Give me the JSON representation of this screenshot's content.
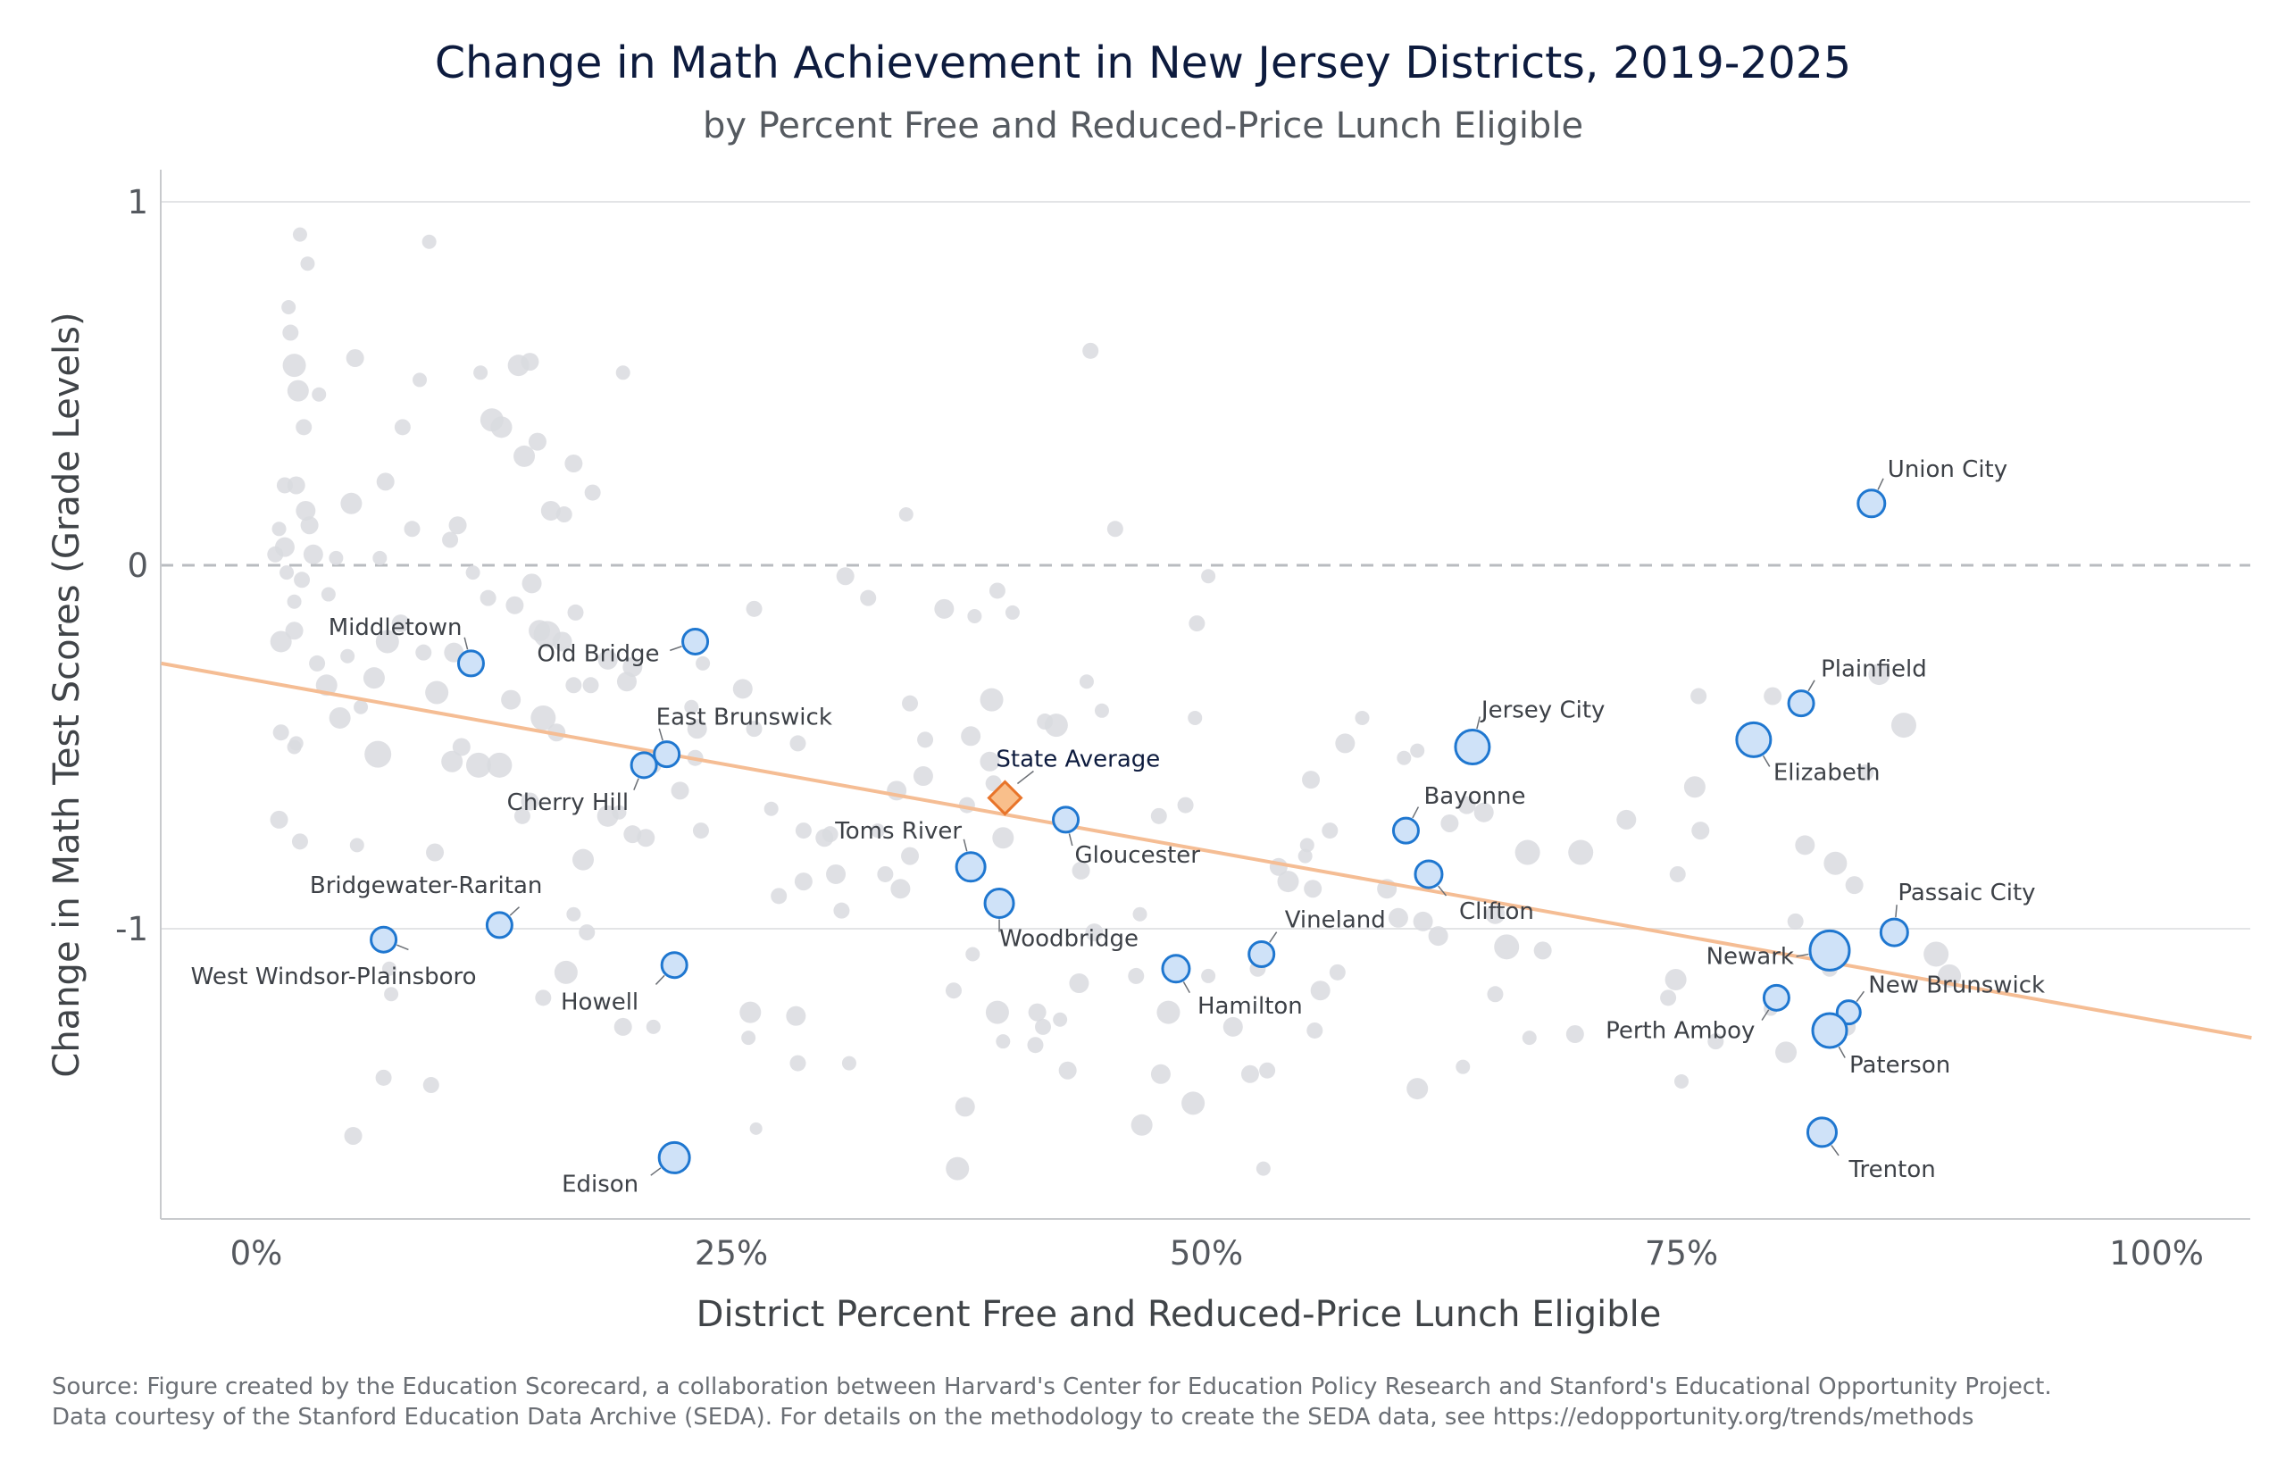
{
  "chart_data": {
    "type": "scatter",
    "title": "Change in Math Achievement in New Jersey Districts, 2019-2025",
    "subtitle": "by Percent Free and Reduced-Price Lunch Eligible",
    "xlabel": "District Percent Free and Reduced-Price Lunch Eligible",
    "ylabel": "Change in Math Test Scores (Grade Levels)",
    "xlim": [
      -5,
      105
    ],
    "ylim": [
      -1.8,
      1.1
    ],
    "x_ticks": [
      {
        "value": 0,
        "label": "0%"
      },
      {
        "value": 25,
        "label": "25%"
      },
      {
        "value": 50,
        "label": "50%"
      },
      {
        "value": 75,
        "label": "75%"
      },
      {
        "value": 100,
        "label": "100%"
      }
    ],
    "y_ticks": [
      {
        "value": 1,
        "label": "1"
      },
      {
        "value": 0,
        "label": "0"
      },
      {
        "value": -1,
        "label": "-1"
      }
    ],
    "reference_line_y": 0,
    "trend_line": {
      "x": [
        -5,
        105
      ],
      "y": [
        -0.27,
        -1.3
      ]
    },
    "colors": {
      "background_points": "#d9dbdf",
      "highlight_fill": "#cfe2f8",
      "highlight_stroke": "#1f77d0",
      "state_fill": "#f9bf8b",
      "state_stroke": "#e8742a",
      "trend": "#f5bd94",
      "reference": "#b9bcc0",
      "grid": "#e3e4e6"
    },
    "background_points": [
      [
        1,
        0.03,
        9
      ],
      [
        1.5,
        0.05,
        11
      ],
      [
        2,
        0.55,
        13
      ],
      [
        2.2,
        0.48,
        12
      ],
      [
        2.5,
        0.38,
        9
      ],
      [
        1.8,
        0.64,
        9
      ],
      [
        1.7,
        0.71,
        8
      ],
      [
        2.3,
        0.91,
        8
      ],
      [
        2.7,
        0.83,
        8
      ],
      [
        3.3,
        0.47,
        8
      ],
      [
        2.1,
        0.22,
        10
      ],
      [
        1.5,
        0.22,
        9
      ],
      [
        2.6,
        0.15,
        11
      ],
      [
        1.2,
        0.1,
        8
      ],
      [
        2.8,
        0.11,
        10
      ],
      [
        3,
        0.03,
        11
      ],
      [
        1.6,
        -0.02,
        8
      ],
      [
        2.4,
        -0.04,
        9
      ],
      [
        2,
        -0.1,
        8
      ],
      [
        3.8,
        -0.08,
        8
      ],
      [
        5,
        0.17,
        12
      ],
      [
        5.2,
        0.57,
        10
      ],
      [
        4.2,
        0.02,
        8
      ],
      [
        6.5,
        0.02,
        8
      ],
      [
        6.8,
        0.23,
        10
      ],
      [
        8.2,
        0.1,
        9
      ],
      [
        8.6,
        0.51,
        8
      ],
      [
        9.1,
        0.89,
        8
      ],
      [
        7.7,
        0.38,
        9
      ],
      [
        1.3,
        -0.21,
        12
      ],
      [
        2,
        -0.18,
        10
      ],
      [
        3.2,
        -0.27,
        9
      ],
      [
        3.7,
        -0.33,
        12
      ],
      [
        4.8,
        -0.25,
        8
      ],
      [
        6.2,
        -0.31,
        12
      ],
      [
        6.9,
        -0.21,
        13
      ],
      [
        7.6,
        -0.16,
        10
      ],
      [
        8.8,
        -0.24,
        9
      ],
      [
        9.5,
        -0.35,
        13
      ],
      [
        10.4,
        -0.24,
        11
      ],
      [
        11.1,
        -0.26,
        8
      ],
      [
        4.4,
        -0.42,
        12
      ],
      [
        5.5,
        -0.39,
        8
      ],
      [
        6.4,
        -0.52,
        15
      ],
      [
        1.3,
        -0.46,
        9
      ],
      [
        2.1,
        -0.49,
        8
      ],
      [
        1.2,
        -0.7,
        10
      ],
      [
        2.3,
        -0.76,
        9
      ],
      [
        5.3,
        -0.77,
        8
      ],
      [
        9.4,
        -0.79,
        10
      ],
      [
        2,
        -0.5,
        8
      ],
      [
        10.2,
        0.07,
        9
      ],
      [
        10.6,
        0.11,
        10
      ],
      [
        11.8,
        0.53,
        8
      ],
      [
        12.4,
        0.4,
        13
      ],
      [
        12.9,
        0.38,
        12
      ],
      [
        13.8,
        0.55,
        12
      ],
      [
        14.4,
        0.56,
        10
      ],
      [
        14.1,
        0.3,
        12
      ],
      [
        14.8,
        0.34,
        10
      ],
      [
        16.2,
        0.14,
        9
      ],
      [
        15.5,
        0.15,
        11
      ],
      [
        16.7,
        0.28,
        10
      ],
      [
        17.7,
        0.2,
        9
      ],
      [
        19.3,
        0.53,
        8
      ],
      [
        11.4,
        -0.02,
        8
      ],
      [
        12.2,
        -0.09,
        9
      ],
      [
        13.6,
        -0.11,
        10
      ],
      [
        14.5,
        -0.05,
        11
      ],
      [
        15.3,
        -0.19,
        15
      ],
      [
        14.9,
        -0.18,
        12
      ],
      [
        16.1,
        -0.21,
        11
      ],
      [
        16.8,
        -0.13,
        9
      ],
      [
        17.6,
        -0.33,
        9
      ],
      [
        18.5,
        -0.26,
        11
      ],
      [
        19.5,
        -0.32,
        11
      ],
      [
        19.8,
        -0.28,
        11
      ],
      [
        10.3,
        -0.54,
        12
      ],
      [
        11.7,
        -0.55,
        14
      ],
      [
        12.8,
        -0.55,
        14
      ],
      [
        13.4,
        -0.37,
        11
      ],
      [
        15.1,
        -0.42,
        14
      ],
      [
        15.8,
        -0.46,
        10
      ],
      [
        16.7,
        -0.33,
        9
      ],
      [
        10.8,
        -0.5,
        10
      ],
      [
        14,
        -0.69,
        9
      ],
      [
        14.4,
        -0.65,
        10
      ],
      [
        17.2,
        -0.81,
        12
      ],
      [
        16.7,
        -0.96,
        8
      ],
      [
        17.4,
        -1.01,
        9
      ],
      [
        16.3,
        -1.12,
        13
      ],
      [
        15.1,
        -1.19,
        9
      ],
      [
        19.3,
        -1.27,
        10
      ],
      [
        20.9,
        -1.27,
        8
      ],
      [
        18.5,
        -0.69,
        12
      ],
      [
        19.8,
        -0.74,
        10
      ],
      [
        20.5,
        -0.75,
        10
      ],
      [
        19.1,
        -0.68,
        8
      ],
      [
        20.9,
        -0.55,
        9
      ],
      [
        22.3,
        -0.62,
        10
      ],
      [
        23.4,
        -0.73,
        9
      ],
      [
        23.1,
        -0.53,
        9
      ],
      [
        22.9,
        -0.39,
        8
      ],
      [
        23.5,
        -0.27,
        8
      ],
      [
        23.2,
        -0.45,
        11
      ],
      [
        7,
        -1.11,
        8
      ],
      [
        7.1,
        -1.18,
        8
      ],
      [
        6.7,
        -1.41,
        9
      ],
      [
        9.2,
        -1.43,
        9
      ],
      [
        5.1,
        -1.57,
        10
      ],
      [
        26.2,
        -0.12,
        9
      ],
      [
        25.6,
        -0.34,
        11
      ],
      [
        26.2,
        -0.45,
        9
      ],
      [
        27.1,
        -0.67,
        8
      ],
      [
        28.8,
        -0.73,
        9
      ],
      [
        27.5,
        -0.91,
        9
      ],
      [
        28.8,
        -0.87,
        10
      ],
      [
        29.9,
        -0.75,
        10
      ],
      [
        30.5,
        -0.85,
        11
      ],
      [
        30.8,
        -0.95,
        9
      ],
      [
        30.2,
        -0.74,
        9
      ],
      [
        28.5,
        -0.49,
        9
      ],
      [
        32.2,
        -0.09,
        9
      ],
      [
        31,
        -0.03,
        10
      ],
      [
        34.4,
        -0.38,
        9
      ],
      [
        35.2,
        -0.48,
        9
      ],
      [
        35.1,
        -0.58,
        11
      ],
      [
        33.7,
        -0.62,
        11
      ],
      [
        32.7,
        -0.73,
        8
      ],
      [
        33.1,
        -0.85,
        9
      ],
      [
        34.4,
        -0.8,
        10
      ],
      [
        33.9,
        -0.89,
        11
      ],
      [
        34.2,
        0.14,
        8
      ],
      [
        36.2,
        -0.12,
        11
      ],
      [
        37.8,
        -0.14,
        8
      ],
      [
        39,
        -0.07,
        9
      ],
      [
        39.8,
        -0.13,
        8
      ],
      [
        38.7,
        -0.37,
        13
      ],
      [
        37.6,
        -0.47,
        11
      ],
      [
        38.6,
        -0.54,
        11
      ],
      [
        38.8,
        -0.6,
        9
      ],
      [
        37.4,
        -0.66,
        9
      ],
      [
        39.3,
        -0.75,
        12
      ],
      [
        42.1,
        -0.44,
        13
      ],
      [
        41.5,
        -0.43,
        9
      ],
      [
        43.7,
        -0.32,
        8
      ],
      [
        44.5,
        -0.4,
        8
      ],
      [
        43.9,
        0.59,
        9
      ],
      [
        45.2,
        0.1,
        9
      ],
      [
        47.5,
        -0.69,
        9
      ],
      [
        48.9,
        -0.66,
        9
      ],
      [
        49.5,
        -0.16,
        9
      ],
      [
        49.4,
        -0.42,
        8
      ],
      [
        50.1,
        -0.03,
        8
      ],
      [
        43.4,
        -0.84,
        10
      ],
      [
        37.7,
        -1.07,
        8
      ],
      [
        36.7,
        -1.17,
        9
      ],
      [
        39,
        -1.23,
        13
      ],
      [
        41.1,
        -1.23,
        10
      ],
      [
        41.4,
        -1.27,
        9
      ],
      [
        42.3,
        -1.25,
        8
      ],
      [
        41,
        -1.32,
        9
      ],
      [
        43.3,
        -1.15,
        11
      ],
      [
        44.1,
        -1.01,
        10
      ],
      [
        42.7,
        -1.39,
        10
      ],
      [
        37.3,
        -1.49,
        11
      ],
      [
        36.9,
        -1.66,
        13
      ],
      [
        26,
        -1.23,
        12
      ],
      [
        25.9,
        -1.3,
        8
      ],
      [
        28.4,
        -1.24,
        11
      ],
      [
        28.5,
        -1.37,
        9
      ],
      [
        31.2,
        -1.37,
        8
      ],
      [
        26.3,
        -1.55,
        7
      ],
      [
        46.5,
        -0.96,
        8
      ],
      [
        46.3,
        -1.13,
        9
      ],
      [
        48,
        -1.23,
        13
      ],
      [
        47.6,
        -1.4,
        11
      ],
      [
        49.3,
        -1.48,
        13
      ],
      [
        46.6,
        -1.54,
        12
      ],
      [
        50.1,
        -1.13,
        8
      ],
      [
        51.4,
        -1.27,
        11
      ],
      [
        52.3,
        -1.4,
        10
      ],
      [
        53.2,
        -1.39,
        9
      ],
      [
        53,
        -1.66,
        8
      ],
      [
        52.7,
        -1.11,
        9
      ],
      [
        53.8,
        -0.83,
        10
      ],
      [
        54.3,
        -0.87,
        12
      ],
      [
        55.6,
        -0.89,
        10
      ],
      [
        55.3,
        -0.77,
        8
      ],
      [
        55.2,
        -0.8,
        8
      ],
      [
        56.5,
        -0.73,
        9
      ],
      [
        55.5,
        -0.59,
        10
      ],
      [
        57.3,
        -0.49,
        11
      ],
      [
        58.2,
        -0.42,
        8
      ],
      [
        56,
        -1.17,
        11
      ],
      [
        56.9,
        -1.12,
        9
      ],
      [
        55.7,
        -1.28,
        9
      ],
      [
        59.5,
        -0.89,
        11
      ],
      [
        60.1,
        -0.97,
        11
      ],
      [
        60.4,
        -0.53,
        8
      ],
      [
        61.1,
        -0.51,
        8
      ],
      [
        61.4,
        -0.98,
        11
      ],
      [
        62.8,
        -0.71,
        10
      ],
      [
        62.2,
        -1.02,
        11
      ],
      [
        63.7,
        -0.66,
        10
      ],
      [
        64.6,
        -0.68,
        11
      ],
      [
        65.2,
        -0.96,
        11
      ],
      [
        65.2,
        -1.18,
        9
      ],
      [
        65.8,
        -1.05,
        14
      ],
      [
        61.1,
        -1.44,
        12
      ],
      [
        63.5,
        -1.38,
        8
      ],
      [
        66.9,
        -0.79,
        14
      ],
      [
        67.7,
        -1.06,
        10
      ],
      [
        67,
        -1.3,
        8
      ],
      [
        69.4,
        -1.29,
        10
      ],
      [
        69.7,
        -0.79,
        14
      ],
      [
        72.1,
        -0.7,
        11
      ],
      [
        74.8,
        -0.85,
        9
      ],
      [
        74.3,
        -1.19,
        9
      ],
      [
        74.7,
        -1.14,
        12
      ],
      [
        75,
        -1.42,
        8
      ],
      [
        75.7,
        -0.61,
        12
      ],
      [
        76,
        -0.73,
        10
      ],
      [
        75.9,
        -0.36,
        9
      ],
      [
        79.8,
        -0.36,
        10
      ],
      [
        76.8,
        -1.31,
        9
      ],
      [
        79.7,
        -1.22,
        8
      ],
      [
        80.5,
        -1.34,
        12
      ],
      [
        81,
        -0.98,
        9
      ],
      [
        81.5,
        -0.77,
        11
      ],
      [
        82.2,
        -1.05,
        9
      ],
      [
        82.8,
        -1.11,
        9
      ],
      [
        83.1,
        -0.82,
        13
      ],
      [
        84.1,
        -0.88,
        10
      ],
      [
        84.7,
        -0.57,
        9
      ],
      [
        85.4,
        -0.3,
        12
      ],
      [
        86.7,
        -0.44,
        14
      ],
      [
        88.4,
        -1.07,
        14
      ],
      [
        89.1,
        -1.13,
        13
      ],
      [
        83.7,
        -1.27,
        10
      ],
      [
        39.3,
        -1.31,
        8
      ]
    ],
    "highlighted_districts": [
      {
        "name": "Union City",
        "x": 85,
        "y": 0.17,
        "size": 15
      },
      {
        "name": "Plainfield",
        "x": 81.3,
        "y": -0.38,
        "size": 14
      },
      {
        "name": "Elizabeth",
        "x": 78.8,
        "y": -0.48,
        "size": 19
      },
      {
        "name": "Passaic City",
        "x": 86.2,
        "y": -1.01,
        "size": 15
      },
      {
        "name": "Newark",
        "x": 82.8,
        "y": -1.06,
        "size": 22
      },
      {
        "name": "New Brunswick",
        "x": 83.8,
        "y": -1.23,
        "size": 13
      },
      {
        "name": "Perth Amboy",
        "x": 80,
        "y": -1.19,
        "size": 14
      },
      {
        "name": "Paterson",
        "x": 82.8,
        "y": -1.28,
        "size": 19
      },
      {
        "name": "Trenton",
        "x": 82.4,
        "y": -1.56,
        "size": 16
      },
      {
        "name": "Jersey City",
        "x": 64,
        "y": -0.5,
        "size": 19
      },
      {
        "name": "Bayonne",
        "x": 60.5,
        "y": -0.73,
        "size": 14
      },
      {
        "name": "Clifton",
        "x": 61.7,
        "y": -0.85,
        "size": 15
      },
      {
        "name": "Vineland",
        "x": 52.9,
        "y": -1.07,
        "size": 14
      },
      {
        "name": "Hamilton",
        "x": 48.4,
        "y": -1.11,
        "size": 15
      },
      {
        "name": "Gloucester",
        "x": 42.6,
        "y": -0.7,
        "size": 14
      },
      {
        "name": "Woodbridge",
        "x": 39.1,
        "y": -0.93,
        "size": 16
      },
      {
        "name": "Toms River",
        "x": 37.6,
        "y": -0.83,
        "size": 16
      },
      {
        "name": "Old Bridge",
        "x": 23.1,
        "y": -0.21,
        "size": 14
      },
      {
        "name": "East Brunswick",
        "x": 21.6,
        "y": -0.52,
        "size": 14
      },
      {
        "name": "Cherry Hill",
        "x": 20.4,
        "y": -0.55,
        "size": 14
      },
      {
        "name": "Middletown",
        "x": 11.3,
        "y": -0.27,
        "size": 14
      },
      {
        "name": "Bridgewater-Raritan",
        "x": 12.8,
        "y": -0.99,
        "size": 14
      },
      {
        "name": "West Windsor-Plainsboro",
        "x": 6.7,
        "y": -1.03,
        "size": 14
      },
      {
        "name": "Howell",
        "x": 22,
        "y": -1.1,
        "size": 14
      },
      {
        "name": "Edison",
        "x": 22,
        "y": -1.63,
        "size": 17
      }
    ],
    "state_average": {
      "label": "State Average",
      "x": 39.4,
      "y": -0.64
    }
  },
  "source": {
    "line1": "Source: Figure created by the Education Scorecard, a collaboration between Harvard's Center for Education Policy Research and Stanford's Educational Opportunity Project.",
    "line2": "Data courtesy of the Stanford Education Data Archive (SEDA). For details on the methodology to create the SEDA data, see https://edopportunity.org/trends/methods"
  }
}
